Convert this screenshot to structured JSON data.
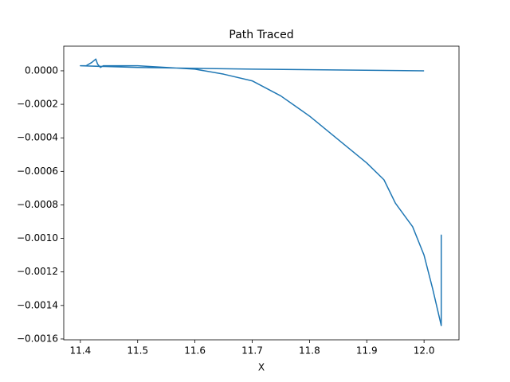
{
  "chart_data": {
    "type": "line",
    "title": "Path Traced",
    "x_label": "X",
    "x": [
      12.0,
      11.7,
      11.5,
      11.4,
      11.41,
      11.42,
      11.427,
      11.43,
      11.435,
      11.44,
      11.5,
      11.55,
      11.6,
      11.65,
      11.7,
      11.75,
      11.8,
      11.85,
      11.9,
      11.93,
      11.95,
      11.98,
      12.0,
      12.015,
      12.03,
      12.03,
      12.03
    ],
    "series": [
      {
        "color": "#1f77b4",
        "values": [
          0.0,
          1e-05,
          2e-05,
          3e-05,
          3e-05,
          5e-05,
          7e-05,
          4e-05,
          2e-05,
          3e-05,
          3e-05,
          2e-05,
          1e-05,
          -2e-05,
          -6e-05,
          -0.00015,
          -0.00027,
          -0.00041,
          -0.00055,
          -0.00065,
          -0.00079,
          -0.00093,
          -0.0011,
          -0.0013,
          -0.00152,
          -0.00098,
          -0.00133
        ]
      }
    ],
    "xlim": [
      11.371,
      12.061
    ],
    "ylim": [
      -0.001605,
      0.000147
    ],
    "xticks": [
      11.4,
      11.5,
      11.6,
      11.7,
      11.8,
      11.9,
      {
        "value": 12.0,
        "label": "12.0"
      }
    ],
    "yticks": [
      {
        "value": 0,
        "label": "0.0000"
      },
      {
        "value": -0.0002,
        "label": "−0.0002"
      },
      {
        "value": -0.0004,
        "label": "−0.0004"
      },
      {
        "value": -0.0006,
        "label": "−0.0006"
      },
      {
        "value": -0.0008,
        "label": "−0.0008"
      },
      {
        "value": -0.001,
        "label": "−0.0010"
      },
      {
        "value": -0.0012,
        "label": "−0.0012"
      },
      {
        "value": -0.0014,
        "label": "−0.0014"
      },
      {
        "value": -0.0016,
        "label": "−0.0016"
      }
    ],
    "grid": false
  }
}
